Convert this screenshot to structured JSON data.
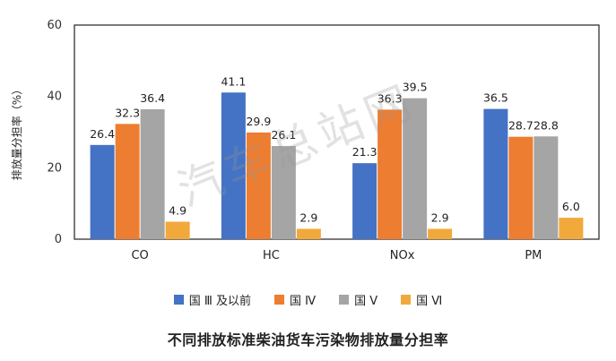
{
  "chart_data": {
    "type": "bar",
    "title": "不同排放标准柴油货车污染物排放量分担率",
    "ylabel": "排放量分担率（%）",
    "xlabel": "",
    "ylim": [
      0,
      60
    ],
    "yticks": [
      0,
      20,
      40,
      60
    ],
    "grid": false,
    "legend_position": "bottom",
    "categories": [
      "CO",
      "HC",
      "NOx",
      "PM"
    ],
    "series": [
      {
        "name": "国 Ⅲ 及以前",
        "color": "#4472C4",
        "values": [
          26.4,
          41.1,
          21.3,
          36.5
        ]
      },
      {
        "name": "国 Ⅳ",
        "color": "#ED7D31",
        "values": [
          32.3,
          29.9,
          36.3,
          28.7
        ]
      },
      {
        "name": "国 Ⅴ",
        "color": "#A5A5A5",
        "values": [
          36.4,
          26.1,
          39.5,
          28.8
        ]
      },
      {
        "name": "国 Ⅵ",
        "color": "#F2A93B",
        "values": [
          4.9,
          2.9,
          2.9,
          6.0
        ]
      }
    ]
  },
  "watermark": "汽车总站网"
}
